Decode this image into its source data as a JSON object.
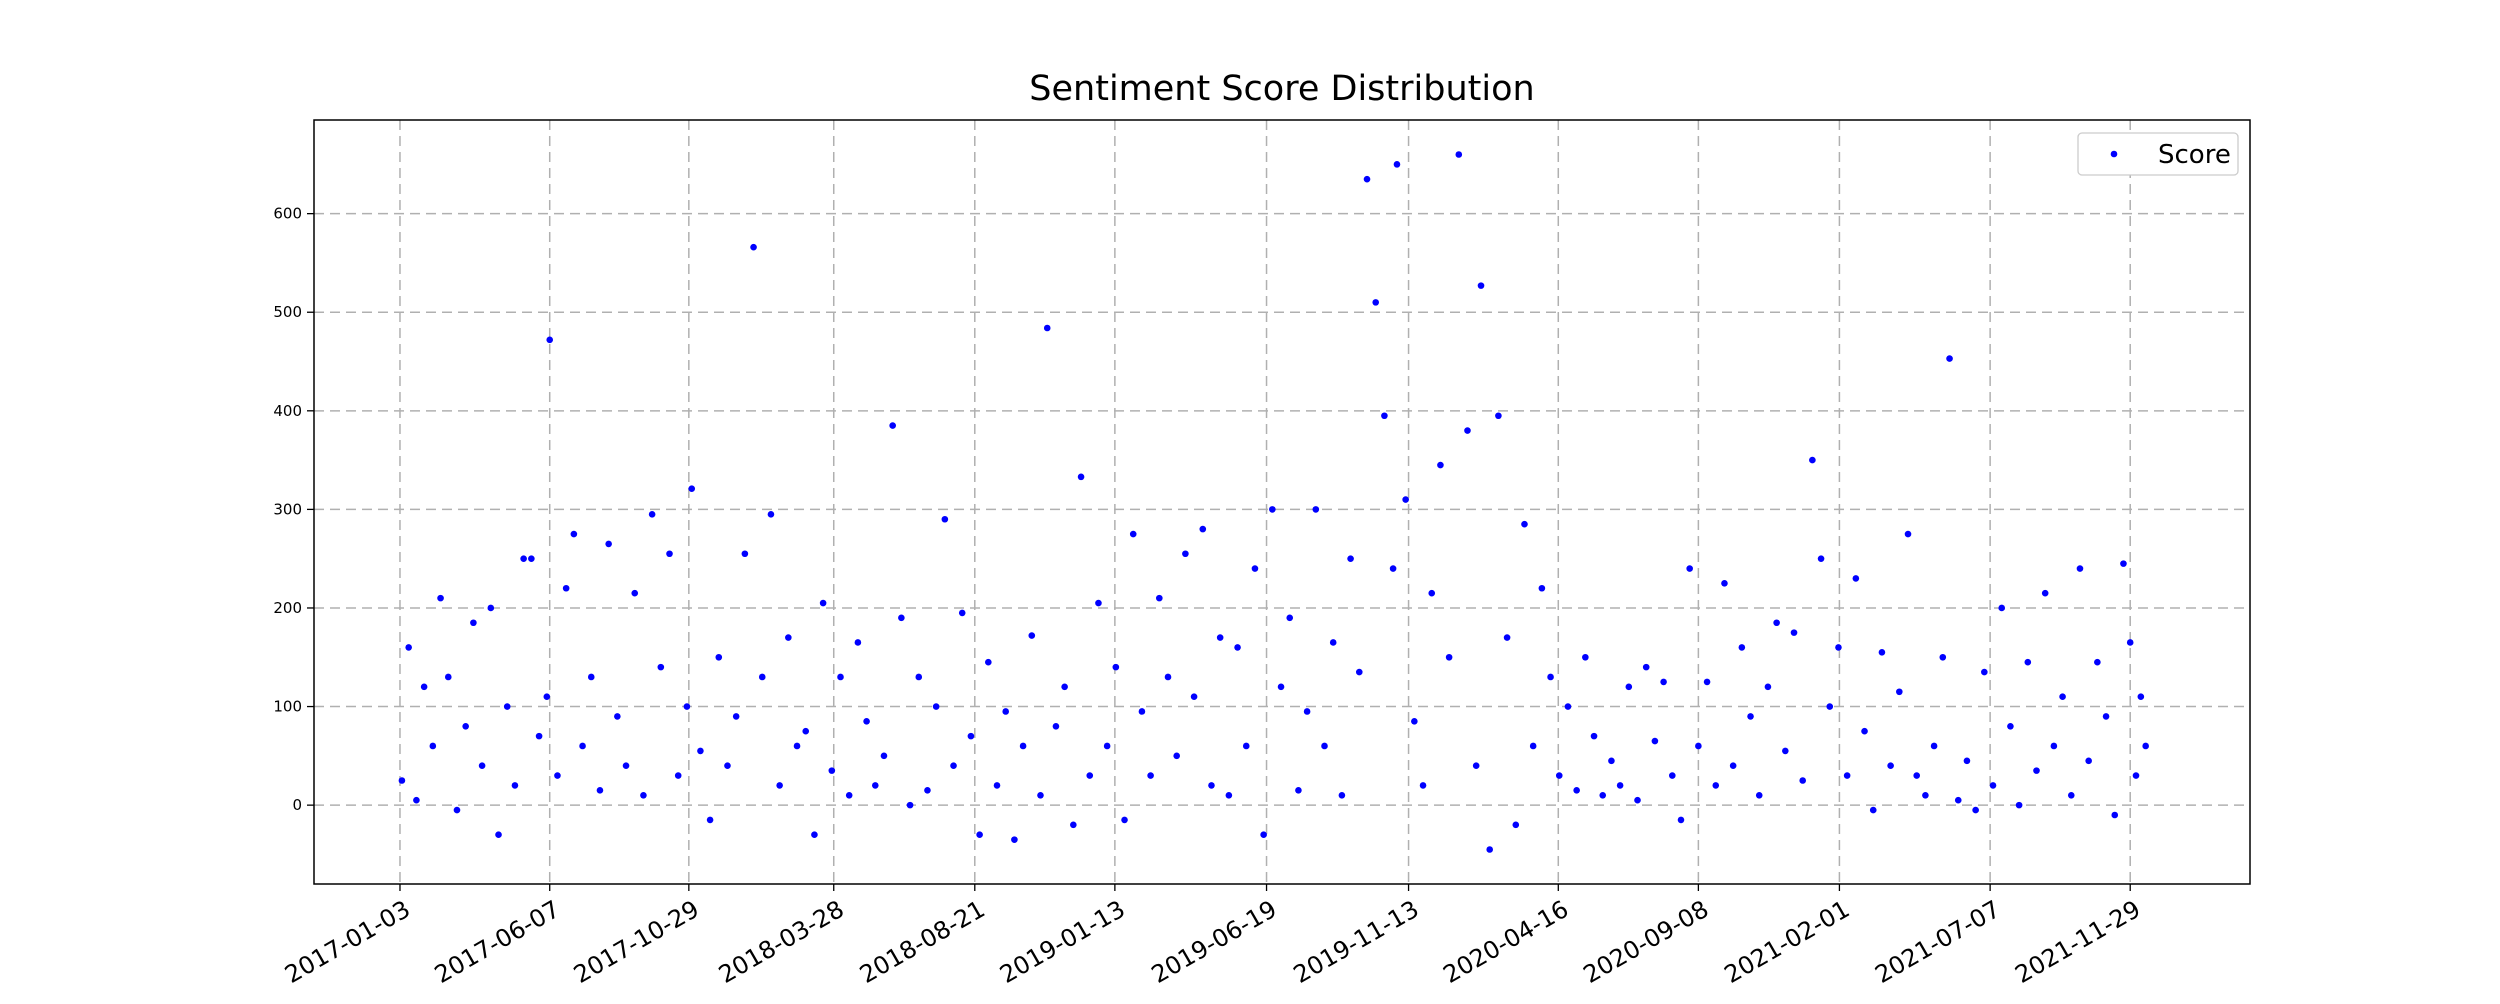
{
  "chart_data": {
    "type": "scatter",
    "title": "Sentiment Score Distribution",
    "xlim": [
      "2016-10-06",
      "2022-04-02"
    ],
    "ylim": [
      -80,
      695
    ],
    "xticks": [
      "2017-01-03",
      "2017-06-07",
      "2017-10-29",
      "2018-03-28",
      "2018-08-21",
      "2019-01-13",
      "2019-06-19",
      "2019-11-13",
      "2020-04-16",
      "2020-09-08",
      "2021-02-01",
      "2021-07-07",
      "2021-11-29"
    ],
    "yticks": [
      0,
      100,
      200,
      300,
      400,
      500,
      600
    ],
    "grid": true,
    "legend": "upper right",
    "x": [
      "2017-01-05",
      "2017-01-12",
      "2017-01-20",
      "2017-01-28",
      "2017-02-06",
      "2017-02-14",
      "2017-02-22",
      "2017-03-03",
      "2017-03-12",
      "2017-03-20",
      "2017-03-29",
      "2017-04-07",
      "2017-04-15",
      "2017-04-24",
      "2017-05-02",
      "2017-05-11",
      "2017-05-19",
      "2017-05-27",
      "2017-06-04",
      "2017-06-07",
      "2017-06-15",
      "2017-06-24",
      "2017-07-02",
      "2017-07-11",
      "2017-07-20",
      "2017-07-29",
      "2017-08-07",
      "2017-08-16",
      "2017-08-25",
      "2017-09-03",
      "2017-09-12",
      "2017-09-21",
      "2017-09-30",
      "2017-10-09",
      "2017-10-18",
      "2017-10-27",
      "2017-11-01",
      "2017-11-10",
      "2017-11-20",
      "2017-11-29",
      "2017-12-08",
      "2017-12-17",
      "2017-12-26",
      "2018-01-04",
      "2018-01-13",
      "2018-01-22",
      "2018-01-31",
      "2018-02-09",
      "2018-02-18",
      "2018-02-27",
      "2018-03-08",
      "2018-03-17",
      "2018-03-26",
      "2018-04-04",
      "2018-04-13",
      "2018-04-22",
      "2018-05-01",
      "2018-05-10",
      "2018-05-19",
      "2018-05-28",
      "2018-06-06",
      "2018-06-15",
      "2018-06-24",
      "2018-07-03",
      "2018-07-12",
      "2018-07-21",
      "2018-07-30",
      "2018-08-08",
      "2018-08-17",
      "2018-08-26",
      "2018-09-04",
      "2018-09-13",
      "2018-09-22",
      "2018-10-01",
      "2018-10-10",
      "2018-10-19",
      "2018-10-28",
      "2018-11-04",
      "2018-11-13",
      "2018-11-22",
      "2018-12-01",
      "2018-12-09",
      "2018-12-18",
      "2018-12-27",
      "2019-01-05",
      "2019-01-14",
      "2019-01-23",
      "2019-02-01",
      "2019-02-10",
      "2019-02-19",
      "2019-02-28",
      "2019-03-09",
      "2019-03-18",
      "2019-03-27",
      "2019-04-05",
      "2019-04-14",
      "2019-04-23",
      "2019-05-02",
      "2019-05-11",
      "2019-05-20",
      "2019-05-29",
      "2019-06-07",
      "2019-06-16",
      "2019-06-25",
      "2019-07-04",
      "2019-07-13",
      "2019-07-22",
      "2019-07-31",
      "2019-08-09",
      "2019-08-18",
      "2019-08-27",
      "2019-09-05",
      "2019-09-14",
      "2019-09-23",
      "2019-10-01",
      "2019-10-10",
      "2019-10-19",
      "2019-10-28",
      "2019-11-01",
      "2019-11-10",
      "2019-11-19",
      "2019-11-28",
      "2019-12-07",
      "2019-12-16",
      "2019-12-25",
      "2020-01-04",
      "2020-01-13",
      "2020-01-22",
      "2020-01-27",
      "2020-02-05",
      "2020-02-14",
      "2020-02-23",
      "2020-03-03",
      "2020-03-12",
      "2020-03-21",
      "2020-03-30",
      "2020-04-08",
      "2020-04-17",
      "2020-04-26",
      "2020-05-05",
      "2020-05-14",
      "2020-05-23",
      "2020-06-01",
      "2020-06-10",
      "2020-06-19",
      "2020-06-28",
      "2020-07-07",
      "2020-07-16",
      "2020-07-25",
      "2020-08-03",
      "2020-08-12",
      "2020-08-21",
      "2020-08-30",
      "2020-09-08",
      "2020-09-17",
      "2020-09-26",
      "2020-10-05",
      "2020-10-14",
      "2020-10-23",
      "2020-11-01",
      "2020-11-10",
      "2020-11-19",
      "2020-11-28",
      "2020-12-07",
      "2020-12-16",
      "2020-12-25",
      "2021-01-04",
      "2021-01-13",
      "2021-01-22",
      "2021-01-31",
      "2021-02-09",
      "2021-02-18",
      "2021-02-27",
      "2021-03-08",
      "2021-03-17",
      "2021-03-26",
      "2021-04-04",
      "2021-04-13",
      "2021-04-22",
      "2021-05-01",
      "2021-05-10",
      "2021-05-19",
      "2021-05-26",
      "2021-06-04",
      "2021-06-13",
      "2021-06-22",
      "2021-07-01",
      "2021-07-10",
      "2021-07-19",
      "2021-07-28",
      "2021-08-06",
      "2021-08-15",
      "2021-08-24",
      "2021-09-02",
      "2021-09-11",
      "2021-09-20",
      "2021-09-29",
      "2021-10-08",
      "2021-10-17",
      "2021-10-26",
      "2021-11-04",
      "2021-11-13",
      "2021-11-22",
      "2021-11-29",
      "2021-12-05",
      "2021-12-10",
      "2021-12-15"
    ],
    "series": [
      {
        "name": "Score",
        "color": "#0000ff",
        "values": [
          25,
          160,
          5,
          120,
          60,
          210,
          130,
          -5,
          80,
          185,
          40,
          200,
          -30,
          100,
          20,
          250,
          250,
          70,
          110,
          472,
          30,
          220,
          275,
          60,
          130,
          15,
          265,
          90,
          40,
          215,
          10,
          295,
          140,
          255,
          30,
          100,
          321,
          55,
          -15,
          150,
          40,
          90,
          255,
          566,
          130,
          295,
          20,
          170,
          60,
          75,
          -30,
          205,
          35,
          130,
          10,
          165,
          85,
          20,
          50,
          385,
          190,
          0,
          130,
          15,
          100,
          290,
          40,
          195,
          70,
          -30,
          145,
          20,
          95,
          -35,
          60,
          172,
          10,
          484,
          80,
          120,
          -20,
          333,
          30,
          205,
          60,
          140,
          -15,
          275,
          95,
          30,
          210,
          130,
          50,
          255,
          110,
          280,
          20,
          170,
          10,
          160,
          60,
          240,
          -30,
          300,
          120,
          190,
          15,
          95,
          300,
          60,
          165,
          10,
          250,
          135,
          635,
          510,
          395,
          240,
          650,
          310,
          85,
          20,
          215,
          345,
          150,
          660,
          380,
          40,
          527,
          -45,
          395,
          170,
          -20,
          285,
          60,
          220,
          130,
          30,
          100,
          15,
          150,
          70,
          10,
          45,
          20,
          120,
          5,
          140,
          65,
          125,
          30,
          -15,
          240,
          60,
          125,
          20,
          225,
          40,
          160,
          90,
          10,
          120,
          185,
          55,
          175,
          25,
          350,
          250,
          100,
          160,
          30,
          230,
          75,
          -5,
          155,
          40,
          115,
          275,
          30,
          10,
          60,
          150,
          453,
          5,
          45,
          -5,
          135,
          20,
          200,
          80,
          0,
          145,
          35,
          215,
          60,
          110,
          10,
          240,
          45,
          145,
          90,
          -10,
          245,
          165,
          30,
          110,
          60
        ]
      }
    ]
  }
}
